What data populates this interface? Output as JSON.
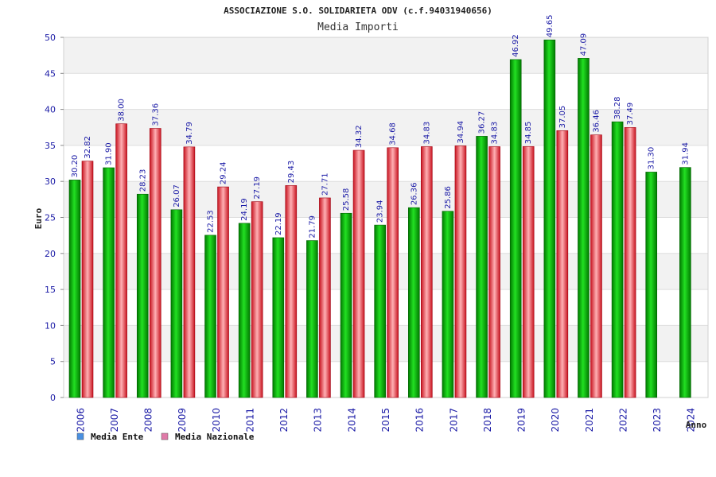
{
  "chart_data": {
    "type": "bar",
    "title": "ASSOCIAZIONE S.O. SOLIDARIETA ODV (c.f.94031940656)",
    "subtitle": "Media Importi",
    "ylabel": "Euro",
    "xlabel": "Anno",
    "ylim": [
      0,
      50
    ],
    "yticks": [
      0,
      5,
      10,
      15,
      20,
      25,
      30,
      35,
      40,
      45,
      50
    ],
    "grid": true,
    "legend_position": "bottom-left",
    "categories": [
      "2006",
      "2007",
      "2008",
      "2009",
      "2010",
      "2011",
      "2012",
      "2013",
      "2014",
      "2015",
      "2016",
      "2017",
      "2018",
      "2019",
      "2020",
      "2021",
      "2022",
      "2023",
      "2024"
    ],
    "series": [
      {
        "name": "Media Ente",
        "color": "#00b000",
        "legend_color": "#4a90e2",
        "values": [
          30.2,
          31.9,
          28.23,
          26.07,
          22.53,
          24.19,
          22.19,
          21.79,
          25.58,
          23.94,
          26.36,
          25.86,
          36.27,
          46.92,
          49.65,
          47.09,
          38.28,
          31.3,
          31.94
        ],
        "labels": [
          "30.20",
          "31.90",
          "28.23",
          "26.07",
          "22.53",
          "24.19",
          "22.19",
          "21.79",
          "25.58",
          "23.94",
          "26.36",
          "25.86",
          "36.27",
          "46.92",
          "49.65",
          "47.09",
          "38.28",
          "31.30",
          "31.94"
        ]
      },
      {
        "name": "Media Nazionale",
        "color": "#e8303a",
        "legend_color": "#e07aa8",
        "values": [
          32.82,
          38.0,
          37.36,
          34.79,
          29.24,
          27.19,
          29.43,
          27.71,
          34.32,
          34.68,
          34.83,
          34.94,
          34.83,
          34.85,
          37.05,
          36.46,
          37.49,
          null,
          null
        ],
        "labels": [
          "32.82",
          "38.00",
          "37.36",
          "34.79",
          "29.24",
          "27.19",
          "29.43",
          "27.71",
          "34.32",
          "34.68",
          "34.83",
          "34.94",
          "34.83",
          "34.85",
          "37.05",
          "36.46",
          "37.49",
          "",
          ""
        ]
      }
    ]
  }
}
